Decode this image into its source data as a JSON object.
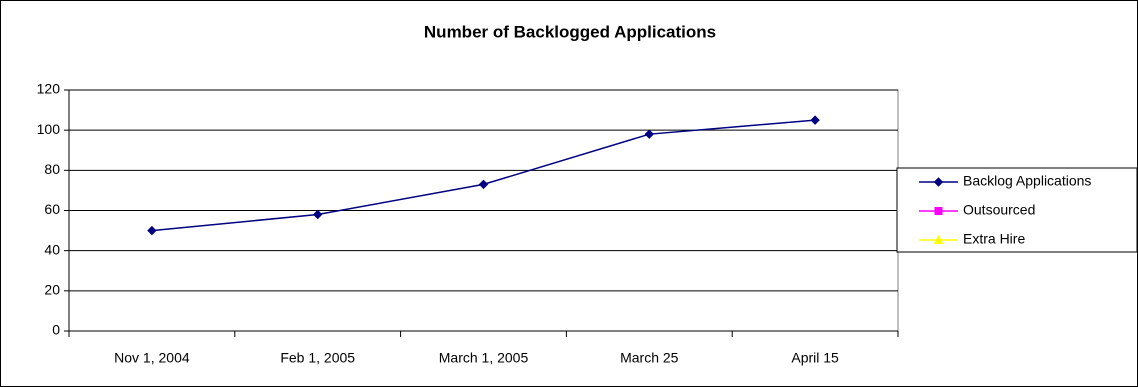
{
  "chart_data": {
    "type": "line",
    "title": "Number of Backlogged Applications",
    "categories": [
      "Nov 1, 2004",
      "Feb 1, 2005",
      "March 1, 2005",
      "March 25",
      "April 15"
    ],
    "series": [
      {
        "name": "Backlog Applications",
        "color": "#000080",
        "marker": "diamond",
        "values": [
          50,
          58,
          73,
          98,
          105
        ]
      },
      {
        "name": "Outsourced",
        "color": "#ff00ff",
        "marker": "square",
        "values": [
          null,
          null,
          null,
          null,
          null
        ]
      },
      {
        "name": "Extra Hire",
        "color": "#ffff00",
        "marker": "triangle",
        "values": [
          null,
          null,
          null,
          null,
          null
        ]
      }
    ],
    "ylim": [
      0,
      120
    ],
    "yticks": [
      0,
      20,
      40,
      60,
      80,
      100,
      120
    ],
    "grid": true,
    "legend": "right"
  }
}
